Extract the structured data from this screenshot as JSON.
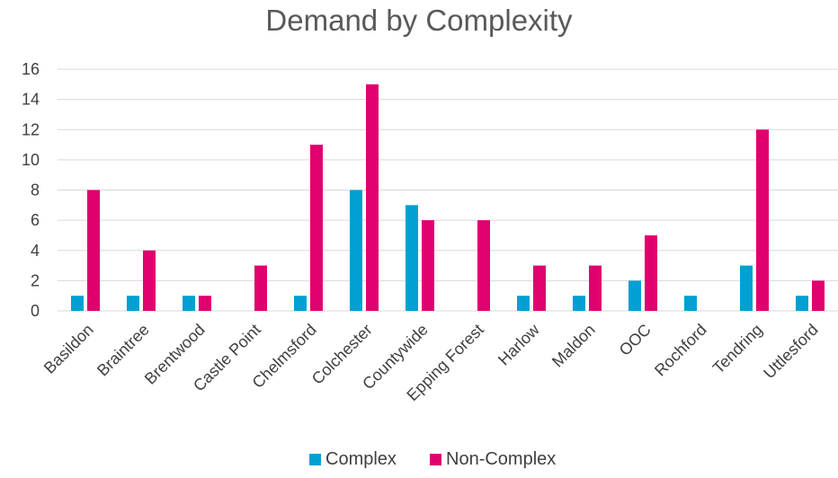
{
  "chart_data": {
    "type": "bar",
    "title": "Demand by Complexity",
    "xlabel": "",
    "ylabel": "",
    "ylim": [
      0,
      16
    ],
    "yticks": [
      0,
      2,
      4,
      6,
      8,
      10,
      12,
      14,
      16
    ],
    "grid": true,
    "legend_position": "bottom",
    "categories": [
      "Basildon",
      "Braintree",
      "Brentwood",
      "Castle Point",
      "Chelmsford",
      "Colchester",
      "Countywide",
      "Epping Forest",
      "Harlow",
      "Maldon",
      "OOC",
      "Rochford",
      "Tendring",
      "Uttlesford"
    ],
    "series": [
      {
        "name": "Complex",
        "color": "#00a0d2",
        "values": [
          1,
          1,
          1,
          0,
          1,
          8,
          7,
          0,
          1,
          1,
          2,
          1,
          3,
          1
        ]
      },
      {
        "name": "Non-Complex",
        "color": "#e0006e",
        "values": [
          8,
          4,
          1,
          3,
          11,
          15,
          6,
          6,
          3,
          3,
          5,
          0,
          12,
          2
        ]
      }
    ]
  }
}
